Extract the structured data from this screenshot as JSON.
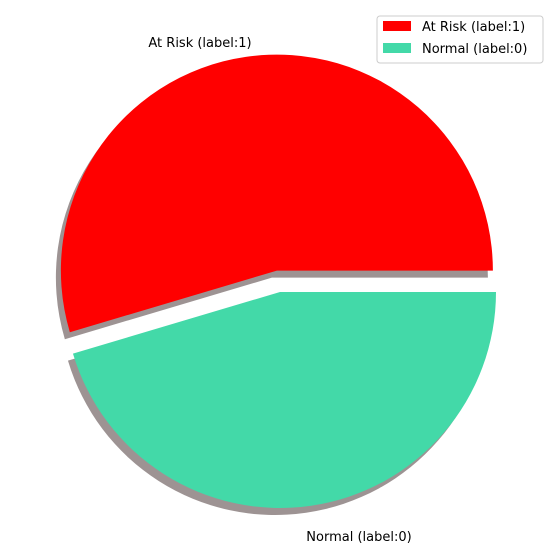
{
  "chart_data": {
    "type": "pie",
    "title": "",
    "categories": [
      "At Risk  (label:1)",
      "Normal (label:0)"
    ],
    "values": [
      54.6,
      45.4
    ],
    "colors": [
      "#ff0000",
      "#43d9a8"
    ],
    "explode": [
      0.1,
      0
    ],
    "shadow": true,
    "start_angle_deg": 0,
    "legend": {
      "placement": "top-right",
      "entries": [
        "At Risk  (label:1)",
        "Normal (label:0)"
      ]
    }
  }
}
